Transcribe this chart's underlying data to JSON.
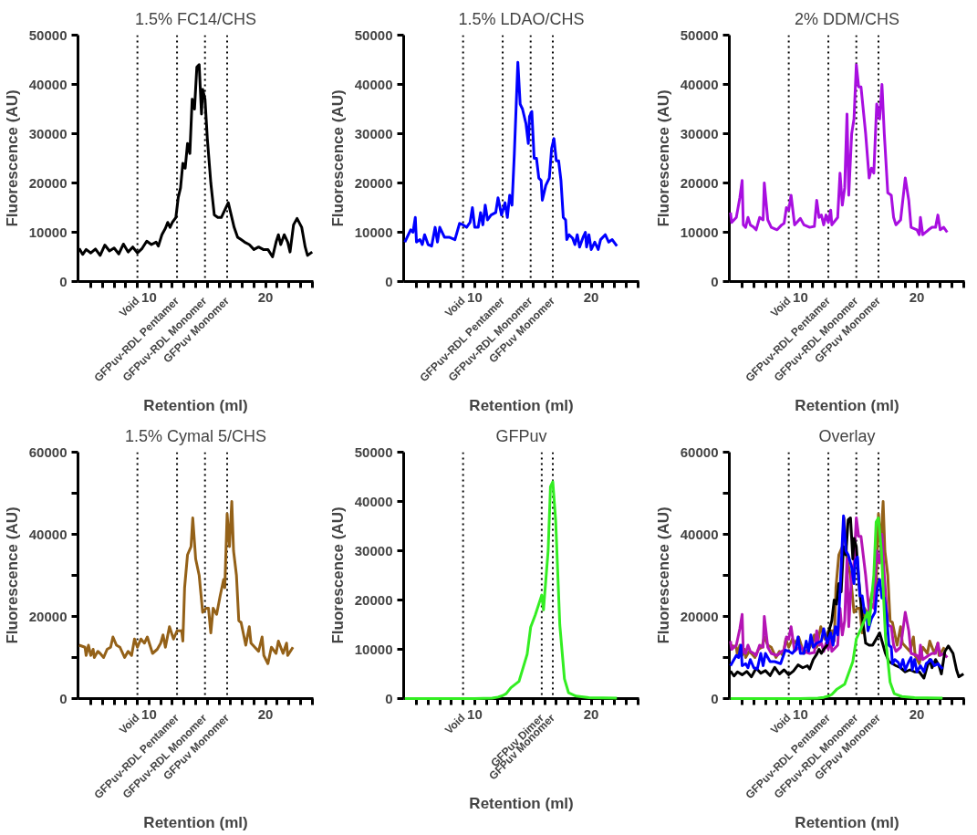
{
  "chart_data": [
    {
      "type": "line",
      "title": "1.5% FC14/CHS",
      "xlabel": "Retention (ml)",
      "ylabel": "Fluorescence (AU)",
      "xlim": [
        3.9,
        24.1
      ],
      "xticks": [
        {
          "value": 5,
          "label": null
        },
        {
          "value": 6,
          "label": null
        },
        {
          "value": 7,
          "label": null
        },
        {
          "value": 8,
          "label": null
        },
        {
          "value": 9,
          "label": null
        },
        10,
        {
          "value": 11,
          "label": null
        },
        {
          "value": 12,
          "label": null
        },
        {
          "value": 13,
          "label": null
        },
        {
          "value": 14,
          "label": null
        },
        {
          "value": 15,
          "label": null
        },
        {
          "value": 16,
          "label": null
        },
        {
          "value": 17,
          "label": null
        },
        {
          "value": 18,
          "label": null
        },
        {
          "value": 19,
          "label": null
        },
        20,
        {
          "value": 21,
          "label": null
        },
        {
          "value": 22,
          "label": null
        },
        {
          "value": 23,
          "label": null
        },
        {
          "value": 24,
          "label": null
        }
      ],
      "ylim": [
        0,
        50000
      ],
      "yticks": [
        0,
        10000,
        20000,
        30000,
        40000,
        50000
      ],
      "grid": false,
      "ref_lines": [
        {
          "axis": "x",
          "value": 9.0,
          "label": "Void",
          "line_style": "dotted",
          "color": "#000000"
        },
        {
          "axis": "x",
          "value": 12.4,
          "label": "GFPuv-RDL Pentamer",
          "line_style": "dotted",
          "color": "#000000"
        },
        {
          "axis": "x",
          "value": 14.8,
          "label": "GFPuv-RDL Monomer",
          "line_style": "dotted",
          "color": "#000000"
        },
        {
          "axis": "x",
          "value": 16.7,
          "label": "GFPuv Monomer",
          "line_style": "dotted",
          "color": "#000000"
        }
      ],
      "series": [
        {
          "color": "#000000",
          "x": [
            4.0,
            4.3,
            4.6,
            5.0,
            5.4,
            5.8,
            6.2,
            6.6,
            7.0,
            7.4,
            7.8,
            8.2,
            8.6,
            9.0,
            9.4,
            9.8,
            10.2,
            10.6,
            10.8,
            11.1,
            11.4,
            11.6,
            11.8,
            12.0,
            12.3,
            12.5,
            12.7,
            12.9,
            13.1,
            13.3,
            13.5,
            13.7,
            13.9,
            14.1,
            14.3,
            14.5,
            14.6,
            14.8,
            15.0,
            15.3,
            15.6,
            15.9,
            16.2,
            16.5,
            16.8,
            17.0,
            17.3,
            17.6,
            17.9,
            18.2,
            18.6,
            19.0,
            19.4,
            19.8,
            20.2,
            20.6,
            20.9,
            21.1,
            21.3,
            21.6,
            21.9,
            22.1,
            22.4,
            22.7,
            23.1,
            23.4,
            23.6,
            24.0
          ],
          "values": [
            6700,
            5500,
            6500,
            5800,
            6600,
            5300,
            7400,
            6200,
            6800,
            5600,
            7600,
            6000,
            7000,
            5800,
            6700,
            8200,
            7500,
            8000,
            7200,
            9500,
            10800,
            12000,
            11000,
            12000,
            13000,
            17000,
            19000,
            24000,
            23000,
            28000,
            26000,
            37000,
            35000,
            43500,
            44000,
            34000,
            39000,
            37000,
            29000,
            20000,
            13500,
            13000,
            13000,
            14500,
            16000,
            14000,
            11000,
            9000,
            8500,
            8000,
            7500,
            6500,
            7000,
            6500,
            6500,
            5000,
            8000,
            9500,
            7500,
            9500,
            8000,
            6000,
            11500,
            12800,
            11000,
            7000,
            5300,
            6000
          ]
        }
      ]
    },
    {
      "type": "line",
      "title": "1.5% LDAO/CHS",
      "xlabel": "Retention (ml)",
      "ylabel": "Fluorescence (AU)",
      "xlim": [
        3.9,
        24.1
      ],
      "xticks": [
        {
          "value": 5,
          "label": null
        },
        {
          "value": 6,
          "label": null
        },
        {
          "value": 7,
          "label": null
        },
        {
          "value": 8,
          "label": null
        },
        {
          "value": 9,
          "label": null
        },
        10,
        {
          "value": 11,
          "label": null
        },
        {
          "value": 12,
          "label": null
        },
        {
          "value": 13,
          "label": null
        },
        {
          "value": 14,
          "label": null
        },
        {
          "value": 15,
          "label": null
        },
        {
          "value": 16,
          "label": null
        },
        {
          "value": 17,
          "label": null
        },
        {
          "value": 18,
          "label": null
        },
        {
          "value": 19,
          "label": null
        },
        20,
        {
          "value": 21,
          "label": null
        },
        {
          "value": 22,
          "label": null
        },
        {
          "value": 23,
          "label": null
        },
        {
          "value": 24,
          "label": null
        }
      ],
      "ylim": [
        0,
        50000
      ],
      "yticks": [
        0,
        10000,
        20000,
        30000,
        40000,
        50000
      ],
      "grid": false,
      "ref_lines": [
        {
          "axis": "x",
          "value": 9.0,
          "label": "Void",
          "line_style": "dotted",
          "color": "#000000"
        },
        {
          "axis": "x",
          "value": 12.4,
          "label": "GFPuv-RDL Pentamer",
          "line_style": "dotted",
          "color": "#000000"
        },
        {
          "axis": "x",
          "value": 14.8,
          "label": "GFPuv-RDL Monomer",
          "line_style": "dotted",
          "color": "#000000"
        },
        {
          "axis": "x",
          "value": 16.7,
          "label": "GFPuv Monomer",
          "line_style": "dotted",
          "color": "#000000"
        }
      ],
      "series": [
        {
          "color": "#0000ff",
          "x": [
            4.0,
            4.5,
            4.7,
            4.9,
            5.0,
            5.3,
            5.5,
            5.7,
            6.0,
            6.3,
            6.6,
            6.8,
            7.0,
            7.4,
            7.8,
            8.3,
            8.7,
            9.0,
            9.3,
            9.6,
            9.8,
            10.0,
            10.3,
            10.5,
            10.7,
            10.9,
            11.1,
            11.4,
            11.8,
            12.0,
            12.3,
            12.6,
            12.8,
            13.0,
            13.2,
            13.4,
            13.7,
            13.9,
            14.1,
            14.4,
            14.6,
            14.7,
            14.9,
            15.1,
            15.3,
            15.5,
            15.7,
            15.8,
            16.1,
            16.4,
            16.6,
            16.8,
            17.0,
            17.2,
            17.4,
            17.6,
            17.8,
            17.9,
            18.1,
            18.4,
            18.6,
            18.8,
            19.0,
            19.3,
            19.5,
            19.6,
            19.8,
            20.0,
            20.3,
            20.6,
            20.8,
            21.2,
            21.5,
            21.8,
            22.2
          ],
          "values": [
            8000,
            10500,
            10000,
            13000,
            8000,
            8500,
            7500,
            9500,
            7500,
            7200,
            11000,
            8000,
            11000,
            9000,
            9000,
            8500,
            11800,
            11500,
            11000,
            12000,
            15000,
            11000,
            11000,
            14000,
            11500,
            15500,
            12500,
            13500,
            14000,
            17000,
            13500,
            16000,
            13000,
            17500,
            15500,
            26000,
            44500,
            36000,
            35000,
            32000,
            28000,
            33500,
            34500,
            25000,
            25000,
            21000,
            20500,
            16500,
            19500,
            21000,
            27000,
            29000,
            24500,
            24500,
            20500,
            13000,
            12500,
            8500,
            9500,
            8800,
            7500,
            9500,
            7000,
            9000,
            10000,
            7000,
            9500,
            6500,
            8000,
            6500,
            8500,
            9500,
            8000,
            8500,
            7200
          ]
        }
      ]
    },
    {
      "type": "line",
      "title": "2% DDM/CHS",
      "xlabel": "Retention (ml)",
      "ylabel": "Fluorescence (AU)",
      "xlim": [
        3.9,
        24.1
      ],
      "xticks": [
        {
          "value": 5,
          "label": null
        },
        {
          "value": 6,
          "label": null
        },
        {
          "value": 7,
          "label": null
        },
        {
          "value": 8,
          "label": null
        },
        {
          "value": 9,
          "label": null
        },
        10,
        {
          "value": 11,
          "label": null
        },
        {
          "value": 12,
          "label": null
        },
        {
          "value": 13,
          "label": null
        },
        {
          "value": 14,
          "label": null
        },
        {
          "value": 15,
          "label": null
        },
        {
          "value": 16,
          "label": null
        },
        {
          "value": 17,
          "label": null
        },
        {
          "value": 18,
          "label": null
        },
        {
          "value": 19,
          "label": null
        },
        20,
        {
          "value": 21,
          "label": null
        },
        {
          "value": 22,
          "label": null
        },
        {
          "value": 23,
          "label": null
        },
        {
          "value": 24,
          "label": null
        }
      ],
      "ylim": [
        0,
        50000
      ],
      "yticks": [
        0,
        10000,
        20000,
        30000,
        40000,
        50000
      ],
      "grid": false,
      "ref_lines": [
        {
          "axis": "x",
          "value": 9.0,
          "label": "Void",
          "line_style": "dotted",
          "color": "#000000"
        },
        {
          "axis": "x",
          "value": 12.4,
          "label": "GFPuv-RDL Pentamer",
          "line_style": "dotted",
          "color": "#000000"
        },
        {
          "axis": "x",
          "value": 14.8,
          "label": "GFPuv-RDL Monomer",
          "line_style": "dotted",
          "color": "#000000"
        },
        {
          "axis": "x",
          "value": 16.7,
          "label": "GFPuv Monomer",
          "line_style": "dotted",
          "color": "#000000"
        }
      ],
      "series": [
        {
          "color": "#a80ee0",
          "x": [
            4.0,
            4.1,
            4.5,
            4.8,
            5.0,
            5.1,
            5.3,
            5.5,
            5.7,
            6.0,
            6.2,
            6.5,
            6.8,
            6.9,
            7.2,
            7.5,
            8.0,
            8.4,
            8.6,
            8.8,
            9.0,
            9.2,
            9.5,
            10.0,
            10.3,
            10.8,
            11.2,
            11.4,
            11.6,
            11.8,
            12.0,
            12.2,
            12.4,
            12.6,
            12.7,
            13.2,
            13.4,
            13.6,
            13.8,
            14.0,
            14.15,
            14.4,
            14.6,
            14.8,
            15.0,
            15.2,
            15.6,
            15.9,
            16.1,
            16.3,
            16.55,
            16.8,
            17.0,
            17.2,
            17.5,
            17.8,
            18.0,
            18.2,
            18.6,
            19.0,
            19.3,
            19.5,
            20.0,
            20.2,
            20.3,
            20.5,
            21.0,
            21.3,
            21.6,
            21.8,
            22.0,
            22.3,
            22.6
          ],
          "values": [
            14000,
            12000,
            13000,
            17000,
            20500,
            11500,
            11000,
            13000,
            11500,
            11000,
            10500,
            13000,
            12500,
            20000,
            12500,
            11000,
            10500,
            11500,
            11800,
            15000,
            14500,
            17500,
            11500,
            12800,
            11500,
            11000,
            11200,
            16500,
            13000,
            13500,
            11500,
            13500,
            12000,
            14500,
            11500,
            13000,
            22000,
            15500,
            19000,
            34000,
            17500,
            30000,
            33000,
            44000,
            39500,
            39500,
            30000,
            21000,
            23000,
            22000,
            36000,
            33000,
            40000,
            30000,
            18000,
            17500,
            13000,
            11500,
            12500,
            21000,
            16500,
            11000,
            10500,
            9500,
            13000,
            9500,
            10500,
            11000,
            11000,
            13500,
            10500,
            11000,
            10000
          ]
        }
      ]
    },
    {
      "type": "line",
      "title": "1.5% Cymal 5/CHS",
      "xlabel": "Retention (ml)",
      "ylabel": "Fluorescence (AU)",
      "xlim": [
        3.9,
        24.1
      ],
      "xticks": [
        {
          "value": 5,
          "label": null
        },
        {
          "value": 6,
          "label": null
        },
        {
          "value": 7,
          "label": null
        },
        {
          "value": 8,
          "label": null
        },
        {
          "value": 9,
          "label": null
        },
        10,
        {
          "value": 11,
          "label": null
        },
        {
          "value": 12,
          "label": null
        },
        {
          "value": 13,
          "label": null
        },
        {
          "value": 14,
          "label": null
        },
        {
          "value": 15,
          "label": null
        },
        {
          "value": 16,
          "label": null
        },
        {
          "value": 17,
          "label": null
        },
        {
          "value": 18,
          "label": null
        },
        {
          "value": 19,
          "label": null
        },
        20,
        {
          "value": 21,
          "label": null
        },
        {
          "value": 22,
          "label": null
        },
        {
          "value": 23,
          "label": null
        },
        {
          "value": 24,
          "label": null
        }
      ],
      "ylim": [
        0,
        60000
      ],
      "yticks": [
        0,
        {
          "value": 10000,
          "label": null
        },
        20000,
        {
          "value": 30000,
          "label": null
        },
        40000,
        {
          "value": 50000,
          "label": null
        },
        60000
      ],
      "grid": false,
      "ref_lines": [
        {
          "axis": "x",
          "value": 9.0,
          "label": "Void",
          "line_style": "dotted",
          "color": "#000000"
        },
        {
          "axis": "x",
          "value": 12.4,
          "label": "GFPuv-RDL Pentamer",
          "line_style": "dotted",
          "color": "#000000"
        },
        {
          "axis": "x",
          "value": 14.8,
          "label": "GFPuv-RDL Monomer",
          "line_style": "dotted",
          "color": "#000000"
        },
        {
          "axis": "x",
          "value": 16.7,
          "label": "GFPuv Monomer",
          "line_style": "dotted",
          "color": "#000000"
        }
      ],
      "series": [
        {
          "color": "#946118",
          "x": [
            4.0,
            4.5,
            4.6,
            4.8,
            5.0,
            5.2,
            5.3,
            5.6,
            5.8,
            6.1,
            6.4,
            6.7,
            6.9,
            7.2,
            7.5,
            7.9,
            8.2,
            8.5,
            8.75,
            9.0,
            9.3,
            9.6,
            9.85,
            10.3,
            10.7,
            11.0,
            11.2,
            11.4,
            11.75,
            12.1,
            12.4,
            12.8,
            12.9,
            13.05,
            13.3,
            13.6,
            13.75,
            14.0,
            14.3,
            14.6,
            14.9,
            15.1,
            15.3,
            15.5,
            15.8,
            16.1,
            16.4,
            16.5,
            16.7,
            16.9,
            17.1,
            17.25,
            17.5,
            17.7,
            17.9,
            18.3,
            18.6,
            18.75,
            19.4,
            19.7,
            19.85,
            20.2,
            20.5,
            20.9,
            21.1,
            21.5,
            21.8,
            21.9,
            22.35
          ],
          "values": [
            13000,
            12500,
            10500,
            13000,
            10500,
            12000,
            10000,
            11500,
            11000,
            10000,
            12000,
            12500,
            15000,
            13000,
            12500,
            10000,
            11500,
            10500,
            14500,
            12500,
            14500,
            13500,
            15000,
            11000,
            12000,
            13500,
            15500,
            12500,
            17500,
            14500,
            16500,
            16500,
            14000,
            27000,
            35000,
            37000,
            44000,
            34000,
            30000,
            21000,
            22000,
            22000,
            16000,
            22000,
            20500,
            25000,
            29000,
            27000,
            45000,
            37000,
            48000,
            36000,
            30000,
            19000,
            18500,
            13000,
            17500,
            13500,
            11500,
            15000,
            10500,
            8500,
            12500,
            11000,
            14000,
            11000,
            13500,
            10500,
            12500
          ]
        }
      ]
    },
    {
      "type": "line",
      "title": "GFPuv",
      "xlabel": "Retention (ml)",
      "ylabel": "Fluorescence (AU)",
      "xlim": [
        3.9,
        24.1
      ],
      "xticks": [
        {
          "value": 5,
          "label": null
        },
        {
          "value": 6,
          "label": null
        },
        {
          "value": 7,
          "label": null
        },
        {
          "value": 8,
          "label": null
        },
        {
          "value": 9,
          "label": null
        },
        10,
        {
          "value": 11,
          "label": null
        },
        {
          "value": 12,
          "label": null
        },
        {
          "value": 13,
          "label": null
        },
        {
          "value": 14,
          "label": null
        },
        {
          "value": 15,
          "label": null
        },
        {
          "value": 16,
          "label": null
        },
        {
          "value": 17,
          "label": null
        },
        {
          "value": 18,
          "label": null
        },
        {
          "value": 19,
          "label": null
        },
        20,
        {
          "value": 21,
          "label": null
        },
        {
          "value": 22,
          "label": null
        },
        {
          "value": 23,
          "label": null
        },
        {
          "value": 24,
          "label": null
        }
      ],
      "ylim": [
        0,
        50000
      ],
      "yticks": [
        0,
        10000,
        20000,
        30000,
        40000,
        50000
      ],
      "grid": false,
      "ref_lines": [
        {
          "axis": "x",
          "value": 9.0,
          "label": "Void",
          "line_style": "dotted",
          "color": "#000000"
        },
        {
          "axis": "x",
          "value": 15.75,
          "label": "GFPuv Dimer",
          "line_style": "dotted",
          "color": "#000000"
        },
        {
          "axis": "x",
          "value": 16.7,
          "label": "GFPuv Monomer",
          "line_style": "dotted",
          "color": "#000000"
        }
      ],
      "series": [
        {
          "color": "#33ee22",
          "x": [
            4.0,
            8.0,
            10.0,
            11.5,
            12.0,
            12.4,
            12.7,
            13.1,
            13.8,
            14.5,
            14.8,
            15.2,
            15.75,
            15.9,
            16.0,
            16.3,
            16.5,
            16.7,
            16.95,
            17.3,
            17.7,
            18.05,
            18.7,
            19.8,
            22.2
          ],
          "values": [
            0,
            0,
            0,
            100,
            300,
            600,
            1000,
            2200,
            3500,
            9000,
            14500,
            17000,
            21000,
            18000,
            21000,
            30000,
            43000,
            44000,
            36000,
            15000,
            4000,
            1200,
            500,
            200,
            100
          ]
        }
      ]
    },
    {
      "type": "line",
      "title": "Overlay",
      "xlabel": "Retention (ml)",
      "ylabel": "Fluorescence (AU)",
      "xlim": [
        3.9,
        24.1
      ],
      "xticks": [
        {
          "value": 5,
          "label": null
        },
        {
          "value": 6,
          "label": null
        },
        {
          "value": 7,
          "label": null
        },
        {
          "value": 8,
          "label": null
        },
        {
          "value": 9,
          "label": null
        },
        10,
        {
          "value": 11,
          "label": null
        },
        {
          "value": 12,
          "label": null
        },
        {
          "value": 13,
          "label": null
        },
        {
          "value": 14,
          "label": null
        },
        {
          "value": 15,
          "label": null
        },
        {
          "value": 16,
          "label": null
        },
        {
          "value": 17,
          "label": null
        },
        {
          "value": 18,
          "label": null
        },
        {
          "value": 19,
          "label": null
        },
        20,
        {
          "value": 21,
          "label": null
        },
        {
          "value": 22,
          "label": null
        },
        {
          "value": 23,
          "label": null
        },
        {
          "value": 24,
          "label": null
        }
      ],
      "ylim": [
        0,
        60000
      ],
      "yticks": [
        0,
        {
          "value": 10000,
          "label": null
        },
        20000,
        {
          "value": 30000,
          "label": null
        },
        40000,
        {
          "value": 50000,
          "label": null
        },
        60000
      ],
      "grid": false,
      "ref_lines": [
        {
          "axis": "x",
          "value": 9.0,
          "label": "Void",
          "line_style": "dotted",
          "color": "#000000"
        },
        {
          "axis": "x",
          "value": 12.4,
          "label": "GFPuv-RDL Pentamer",
          "line_style": "dotted",
          "color": "#000000"
        },
        {
          "axis": "x",
          "value": 14.8,
          "label": "GFPuv-RDL Monomer",
          "line_style": "dotted",
          "color": "#000000"
        },
        {
          "axis": "x",
          "value": 16.7,
          "label": "GFPuv Monomer",
          "line_style": "dotted",
          "color": "#000000"
        }
      ],
      "series": [
        {
          "color": "#946118",
          "x": [
            4.0,
            4.5,
            4.6,
            4.8,
            5.0,
            5.2,
            5.3,
            5.6,
            5.8,
            6.1,
            6.4,
            6.7,
            6.9,
            7.2,
            7.5,
            7.9,
            8.2,
            8.5,
            8.75,
            9.0,
            9.3,
            9.6,
            9.85,
            10.3,
            10.7,
            11.0,
            11.2,
            11.4,
            11.75,
            12.1,
            12.4,
            12.8,
            12.9,
            13.05,
            13.3,
            13.6,
            13.75,
            14.0,
            14.3,
            14.6,
            14.9,
            15.1,
            15.3,
            15.5,
            15.8,
            16.1,
            16.4,
            16.5,
            16.7,
            16.9,
            17.1,
            17.25,
            17.5,
            17.7,
            17.9,
            18.3,
            18.6,
            18.75,
            19.4,
            19.7,
            19.85,
            20.2,
            20.5,
            20.9,
            21.1,
            21.5,
            21.8,
            21.9,
            22.35
          ],
          "values": [
            13000,
            12500,
            10500,
            13000,
            10500,
            12000,
            10000,
            11500,
            11000,
            10000,
            12000,
            12500,
            15000,
            13000,
            12500,
            10000,
            11500,
            10500,
            14500,
            12500,
            14500,
            13500,
            15000,
            11000,
            12000,
            13500,
            15500,
            12500,
            17500,
            14500,
            16500,
            16500,
            14000,
            27000,
            35000,
            37000,
            44000,
            34000,
            30000,
            21000,
            22000,
            22000,
            16000,
            22000,
            20500,
            25000,
            29000,
            27000,
            45000,
            37000,
            48000,
            36000,
            30000,
            19000,
            18500,
            13000,
            17500,
            13500,
            11500,
            15000,
            10500,
            8500,
            12500,
            11000,
            14000,
            11000,
            13500,
            10500,
            12500
          ]
        },
        {
          "color": "#b414b4",
          "x": [
            4.0,
            4.1,
            4.5,
            4.8,
            5.0,
            5.1,
            5.3,
            5.5,
            5.7,
            6.0,
            6.2,
            6.5,
            6.8,
            6.9,
            7.2,
            7.5,
            8.0,
            8.4,
            8.6,
            8.8,
            9.0,
            9.2,
            9.5,
            10.0,
            10.3,
            10.8,
            11.2,
            11.4,
            11.6,
            11.8,
            12.0,
            12.2,
            12.4,
            12.6,
            12.7,
            13.2,
            13.4,
            13.6,
            13.8,
            14.0,
            14.15,
            14.4,
            14.6,
            14.8,
            15.0,
            15.2,
            15.6,
            15.9,
            16.1,
            16.3,
            16.55,
            16.8,
            17.0,
            17.2,
            17.5,
            17.8,
            18.0,
            18.2,
            18.6,
            19.0,
            19.3,
            19.5,
            20.0,
            20.2,
            20.3,
            20.5,
            21.0,
            21.3,
            21.6,
            21.8,
            22.0,
            22.3,
            22.6
          ],
          "values": [
            14000,
            12000,
            13000,
            17000,
            20500,
            11500,
            11000,
            13000,
            11500,
            11000,
            10500,
            13000,
            12500,
            20000,
            12500,
            11000,
            10500,
            11500,
            11800,
            15000,
            14500,
            17500,
            11500,
            12800,
            11500,
            11000,
            11200,
            16500,
            13000,
            13500,
            11500,
            13500,
            12000,
            14500,
            11500,
            13000,
            22000,
            15500,
            19000,
            34000,
            17500,
            30000,
            33000,
            44000,
            39500,
            39500,
            30000,
            21000,
            23000,
            22000,
            36000,
            33000,
            40000,
            30000,
            18000,
            17500,
            13000,
            11500,
            12500,
            21000,
            16500,
            11000,
            10500,
            9500,
            13000,
            9500,
            10500,
            11000,
            11000,
            13500,
            10500,
            11000,
            10000
          ]
        },
        {
          "color": "#000000",
          "x": [
            4.0,
            4.3,
            4.6,
            5.0,
            5.4,
            5.8,
            6.2,
            6.6,
            7.0,
            7.4,
            7.8,
            8.2,
            8.6,
            9.0,
            9.4,
            9.8,
            10.2,
            10.6,
            10.8,
            11.1,
            11.4,
            11.6,
            11.8,
            12.0,
            12.3,
            12.5,
            12.7,
            12.9,
            13.1,
            13.3,
            13.5,
            13.7,
            13.9,
            14.1,
            14.3,
            14.5,
            14.6,
            14.8,
            15.0,
            15.3,
            15.6,
            15.9,
            16.2,
            16.5,
            16.8,
            17.0,
            17.3,
            17.6,
            17.9,
            18.2,
            18.6,
            19.0,
            19.4,
            19.8,
            20.2,
            20.6,
            20.9,
            21.1,
            21.3,
            21.6,
            21.9,
            22.1,
            22.4,
            22.7,
            23.1,
            23.4,
            23.6,
            24.0
          ],
          "values": [
            6700,
            5500,
            6500,
            5800,
            6600,
            5300,
            7400,
            6200,
            6800,
            5600,
            7600,
            6000,
            7000,
            5800,
            6700,
            8200,
            7500,
            8000,
            7200,
            9500,
            10800,
            12000,
            11000,
            12000,
            13000,
            17000,
            19000,
            24000,
            23000,
            28000,
            26000,
            37000,
            35000,
            43500,
            44000,
            34000,
            39000,
            37000,
            29000,
            20000,
            13500,
            13000,
            13000,
            14500,
            16000,
            14000,
            11000,
            9000,
            8500,
            8000,
            7500,
            6500,
            7000,
            6500,
            6500,
            5000,
            8000,
            9500,
            7500,
            9500,
            8000,
            6000,
            11500,
            12800,
            11000,
            7000,
            5300,
            6000
          ]
        },
        {
          "color": "#0000ff",
          "x": [
            4.0,
            4.5,
            4.7,
            4.9,
            5.0,
            5.3,
            5.5,
            5.7,
            6.0,
            6.3,
            6.6,
            6.8,
            7.0,
            7.4,
            7.8,
            8.3,
            8.7,
            9.0,
            9.3,
            9.6,
            9.8,
            10.0,
            10.3,
            10.5,
            10.7,
            10.9,
            11.1,
            11.4,
            11.8,
            12.0,
            12.3,
            12.6,
            12.8,
            13.0,
            13.2,
            13.4,
            13.7,
            13.9,
            14.1,
            14.4,
            14.6,
            14.7,
            14.9,
            15.1,
            15.3,
            15.5,
            15.7,
            15.8,
            16.1,
            16.4,
            16.6,
            16.8,
            17.0,
            17.2,
            17.4,
            17.6,
            17.8,
            17.9,
            18.1,
            18.4,
            18.6,
            18.8,
            19.0,
            19.3,
            19.5,
            19.6,
            19.8,
            20.0,
            20.3,
            20.6,
            20.8,
            21.2,
            21.5,
            21.8,
            22.2
          ],
          "values": [
            8000,
            10500,
            10000,
            13000,
            8000,
            8500,
            7500,
            9500,
            7500,
            7200,
            11000,
            8000,
            11000,
            9000,
            9000,
            8500,
            11800,
            11500,
            11000,
            12000,
            15000,
            11000,
            11000,
            14000,
            11500,
            15500,
            12500,
            13500,
            14000,
            17000,
            13500,
            16000,
            13000,
            17500,
            15500,
            26000,
            44500,
            36000,
            35000,
            32000,
            28000,
            33500,
            34500,
            25000,
            25000,
            21000,
            20500,
            16500,
            19500,
            21000,
            27000,
            29000,
            24500,
            24500,
            20500,
            13000,
            12500,
            8500,
            9500,
            8800,
            7500,
            9500,
            7000,
            9000,
            10000,
            7000,
            9500,
            6500,
            8000,
            6500,
            8500,
            9500,
            8000,
            8500,
            7200
          ]
        },
        {
          "color": "#33ee22",
          "x": [
            4.0,
            8.0,
            10.0,
            11.5,
            12.0,
            12.4,
            12.7,
            13.1,
            13.8,
            14.5,
            14.8,
            15.2,
            15.75,
            15.9,
            16.0,
            16.3,
            16.5,
            16.7,
            16.95,
            17.3,
            17.7,
            18.05,
            18.7,
            19.8,
            22.2
          ],
          "values": [
            0,
            0,
            0,
            100,
            300,
            600,
            1000,
            2200,
            3500,
            9000,
            14500,
            17000,
            21000,
            18000,
            21000,
            30000,
            43000,
            44000,
            36000,
            15000,
            4000,
            1200,
            500,
            200,
            100
          ]
        }
      ]
    }
  ]
}
